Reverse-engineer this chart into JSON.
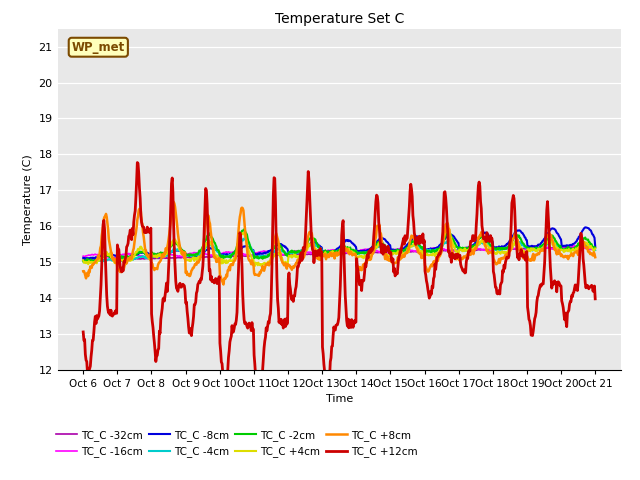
{
  "title": "Temperature Set C",
  "xlabel": "Time",
  "ylabel": "Temperature (C)",
  "ylim": [
    12.0,
    21.5
  ],
  "ytick_vals": [
    12.0,
    13.0,
    14.0,
    15.0,
    16.0,
    17.0,
    18.0,
    19.0,
    20.0,
    21.0
  ],
  "xtick_labels": [
    "Oct 6",
    "Oct 7",
    "Oct 8",
    "Oct 9",
    "Oct 10",
    "Oct 11",
    "Oct 12",
    "Oct 13",
    "Oct 14",
    "Oct 15",
    "Oct 16",
    "Oct 17",
    "Oct 18",
    "Oct 19",
    "Oct 20",
    "Oct 21"
  ],
  "annotation_text": "WP_met",
  "annotation_color": "#7B4A00",
  "annotation_bg": "#FFFFBB",
  "bg_color": "#E8E8E8",
  "white_bg": "#FFFFFF",
  "series": [
    {
      "label": "TC_C -32cm",
      "color": "#AA00AA",
      "lw": 1.2
    },
    {
      "label": "TC_C -16cm",
      "color": "#FF00FF",
      "lw": 1.2
    },
    {
      "label": "TC_C -8cm",
      "color": "#0000DD",
      "lw": 1.5
    },
    {
      "label": "TC_C -4cm",
      "color": "#00CCCC",
      "lw": 1.5
    },
    {
      "label": "TC_C -2cm",
      "color": "#00CC00",
      "lw": 1.5
    },
    {
      "label": "TC_C +4cm",
      "color": "#DDDD00",
      "lw": 1.5
    },
    {
      "label": "TC_C +8cm",
      "color": "#FF8800",
      "lw": 1.8
    },
    {
      "label": "TC_C +12cm",
      "color": "#CC0000",
      "lw": 2.0
    }
  ]
}
